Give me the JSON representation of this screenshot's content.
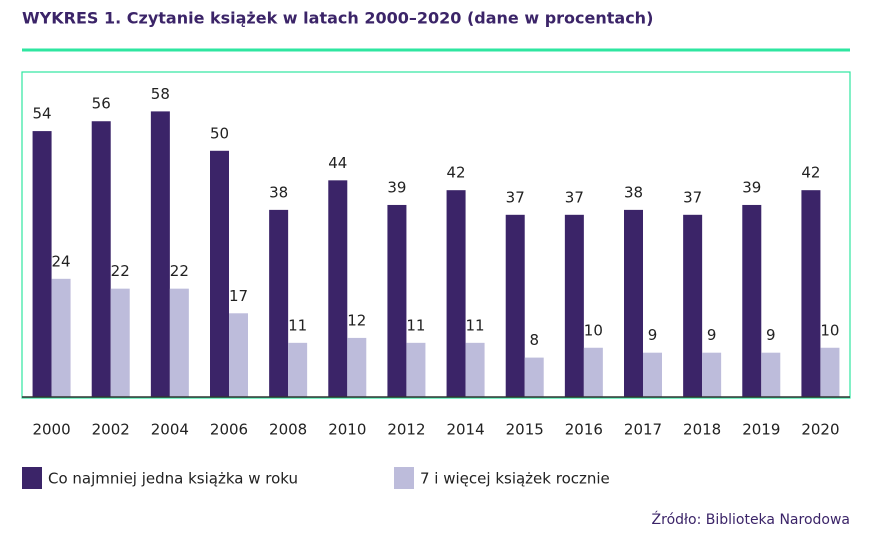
{
  "chart_data": {
    "type": "bar",
    "title": "WYKRES 1. Czytanie książek w latach 2000–2020 (dane w procentach)",
    "categories": [
      "2000",
      "2002",
      "2004",
      "2006",
      "2008",
      "2010",
      "2012",
      "2014",
      "2015",
      "2016",
      "2017",
      "2018",
      "2019",
      "2020"
    ],
    "series": [
      {
        "name": "Co najmniej jedna książka w roku",
        "color": "#3b2468",
        "values": [
          54,
          56,
          58,
          50,
          38,
          44,
          39,
          42,
          37,
          37,
          38,
          37,
          39,
          42
        ]
      },
      {
        "name": "7 i więcej książek rocznie",
        "color": "#bdbcdb",
        "values": [
          24,
          22,
          22,
          17,
          11,
          12,
          11,
          11,
          8,
          10,
          9,
          9,
          9,
          10
        ]
      }
    ],
    "ylim": [
      0,
      66
    ],
    "source": "Źródło: Biblioteka Narodowa"
  }
}
